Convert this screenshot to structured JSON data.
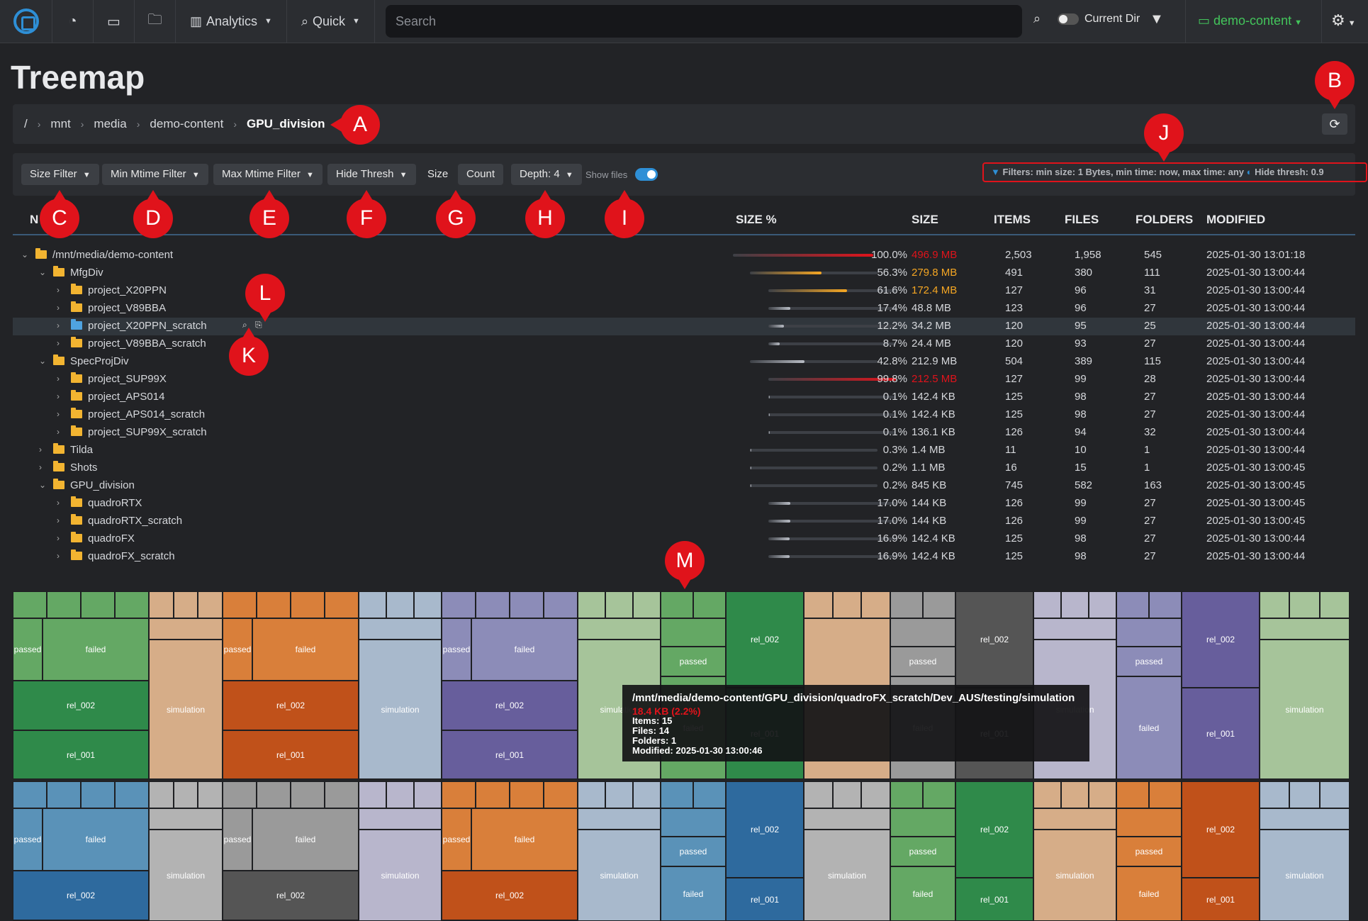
{
  "nav": {
    "analytics_label": "Analytics",
    "quick_label": "Quick",
    "search_placeholder": "Search",
    "current_dir_label": "Current Dir",
    "index_label": "demo-content"
  },
  "page": {
    "title": "Treemap"
  },
  "breadcrumb": [
    "/",
    "mnt",
    "media",
    "demo-content",
    "GPU_division"
  ],
  "controls": {
    "size_filter": "Size Filter",
    "min_mtime_filter": "Min Mtime Filter",
    "max_mtime_filter": "Max Mtime Filter",
    "hide_thresh": "Hide Thresh",
    "size": "Size",
    "count": "Count",
    "depth": "Depth: 4",
    "show_files": "Show files",
    "filter_summary": "Filters: min size: 1 Bytes, min time: now, max time: any",
    "hide_thresh_summary": "Hide thresh: 0.9"
  },
  "table": {
    "headers": {
      "name": "N",
      "size_pct": "SIZE %",
      "size": "SIZE",
      "items": "ITEMS",
      "files": "FILES",
      "folders": "FOLDERS",
      "modified": "MODIFIED"
    },
    "rows": [
      {
        "indent": 0,
        "expanded": true,
        "name": "/mnt/media/demo-content",
        "pct": "100.0%",
        "pct_value": 100.0,
        "size": "496.9 MB",
        "size_color": "#e0131b",
        "items": "2,503",
        "files": "1,958",
        "folders": "545",
        "modified": "2025-01-30 13:01:18"
      },
      {
        "indent": 1,
        "expanded": true,
        "name": "MfgDiv",
        "pct": "56.3%",
        "pct_value": 56.3,
        "size": "279.8 MB",
        "size_color": "#f5a623",
        "items": "491",
        "files": "380",
        "folders": "111",
        "modified": "2025-01-30 13:00:44"
      },
      {
        "indent": 2,
        "expanded": false,
        "name": "project_X20PPN",
        "pct": "61.6%",
        "pct_value": 61.6,
        "size": "172.4 MB",
        "size_color": "#f5a623",
        "items": "127",
        "files": "96",
        "folders": "31",
        "modified": "2025-01-30 13:00:44"
      },
      {
        "indent": 2,
        "expanded": false,
        "name": "project_V89BBA",
        "pct": "17.4%",
        "pct_value": 17.4,
        "size": "48.8 MB",
        "size_color": "",
        "items": "123",
        "files": "96",
        "folders": "27",
        "modified": "2025-01-30 13:00:44"
      },
      {
        "indent": 2,
        "expanded": false,
        "name": "project_X20PPN_scratch",
        "pct": "12.2%",
        "pct_value": 12.2,
        "size": "34.2 MB",
        "size_color": "",
        "items": "120",
        "files": "95",
        "folders": "25",
        "modified": "2025-01-30 13:00:44",
        "highlight": true
      },
      {
        "indent": 2,
        "expanded": false,
        "name": "project_V89BBA_scratch",
        "pct": "8.7%",
        "pct_value": 8.7,
        "size": "24.4 MB",
        "size_color": "",
        "items": "120",
        "files": "93",
        "folders": "27",
        "modified": "2025-01-30 13:00:44"
      },
      {
        "indent": 1,
        "expanded": true,
        "name": "SpecProjDiv",
        "pct": "42.8%",
        "pct_value": 42.8,
        "size": "212.9 MB",
        "size_color": "",
        "items": "504",
        "files": "389",
        "folders": "115",
        "modified": "2025-01-30 13:00:44"
      },
      {
        "indent": 2,
        "expanded": false,
        "name": "project_SUP99X",
        "pct": "99.8%",
        "pct_value": 99.8,
        "size": "212.5 MB",
        "size_color": "#e0131b",
        "items": "127",
        "files": "99",
        "folders": "28",
        "modified": "2025-01-30 13:00:44"
      },
      {
        "indent": 2,
        "expanded": false,
        "name": "project_APS014",
        "pct": "0.1%",
        "pct_value": 0.1,
        "size": "142.4 KB",
        "size_color": "",
        "items": "125",
        "files": "98",
        "folders": "27",
        "modified": "2025-01-30 13:00:44"
      },
      {
        "indent": 2,
        "expanded": false,
        "name": "project_APS014_scratch",
        "pct": "0.1%",
        "pct_value": 0.1,
        "size": "142.4 KB",
        "size_color": "",
        "items": "125",
        "files": "98",
        "folders": "27",
        "modified": "2025-01-30 13:00:44"
      },
      {
        "indent": 2,
        "expanded": false,
        "name": "project_SUP99X_scratch",
        "pct": "0.1%",
        "pct_value": 0.1,
        "size": "136.1 KB",
        "size_color": "",
        "items": "126",
        "files": "94",
        "folders": "32",
        "modified": "2025-01-30 13:00:44"
      },
      {
        "indent": 1,
        "expanded": false,
        "name": "Tilda",
        "pct": "0.3%",
        "pct_value": 0.3,
        "size": "1.4 MB",
        "size_color": "",
        "items": "11",
        "files": "10",
        "folders": "1",
        "modified": "2025-01-30 13:00:44"
      },
      {
        "indent": 1,
        "expanded": false,
        "name": "Shots",
        "pct": "0.2%",
        "pct_value": 0.2,
        "size": "1.1 MB",
        "size_color": "",
        "items": "16",
        "files": "15",
        "folders": "1",
        "modified": "2025-01-30 13:00:45"
      },
      {
        "indent": 1,
        "expanded": true,
        "name": "GPU_division",
        "pct": "0.2%",
        "pct_value": 0.2,
        "size": "845 KB",
        "size_color": "",
        "items": "745",
        "files": "582",
        "folders": "163",
        "modified": "2025-01-30 13:00:45"
      },
      {
        "indent": 2,
        "expanded": false,
        "name": "quadroRTX",
        "pct": "17.0%",
        "pct_value": 17.0,
        "size": "144 KB",
        "size_color": "",
        "items": "126",
        "files": "99",
        "folders": "27",
        "modified": "2025-01-30 13:00:45"
      },
      {
        "indent": 2,
        "expanded": false,
        "name": "quadroRTX_scratch",
        "pct": "17.0%",
        "pct_value": 17.0,
        "size": "144 KB",
        "size_color": "",
        "items": "126",
        "files": "99",
        "folders": "27",
        "modified": "2025-01-30 13:00:45"
      },
      {
        "indent": 2,
        "expanded": false,
        "name": "quadroFX",
        "pct": "16.9%",
        "pct_value": 16.9,
        "size": "142.4 KB",
        "size_color": "",
        "items": "125",
        "files": "98",
        "folders": "27",
        "modified": "2025-01-30 13:00:44"
      },
      {
        "indent": 2,
        "expanded": false,
        "name": "quadroFX_scratch",
        "pct": "16.9%",
        "pct_value": 16.9,
        "size": "142.4 KB",
        "size_color": "",
        "items": "125",
        "files": "98",
        "folders": "27",
        "modified": "2025-01-30 13:00:44"
      }
    ]
  },
  "treemap": {
    "labels": {
      "passed": "passed",
      "failed": "failed",
      "rel_002": "rel_002",
      "rel_001": "rel_001",
      "simulation": "simulation"
    },
    "colors": {
      "green": "#64a864",
      "dkgreen": "#2f8a4a",
      "tan": "#d6ad88",
      "orange": "#d97f3a",
      "dkorange": "#c0511a",
      "ltblue": "#a8b9cc",
      "purple": "#8c8cb8",
      "dkpurple": "#675e9c",
      "sage": "#a6c49a",
      "gray": "#9a9a9a",
      "dkgray": "#555555",
      "lavender": "#b8b6cc",
      "blue": "#5a92b8",
      "dkblue": "#2e6a9e",
      "ltgray": "#b3b3b3"
    }
  },
  "tooltip": {
    "path": "/mnt/media/demo-content/GPU_division/quadroFX_scratch/Dev_AUS/testing/simulation",
    "size": "18.4 KB (2.2%)",
    "items": "Items: 15",
    "files": "Files: 14",
    "folders": "Folders: 1",
    "modified": "Modified: 2025-01-30 13:00:46"
  },
  "callouts": [
    "A",
    "B",
    "C",
    "D",
    "E",
    "F",
    "G",
    "H",
    "I",
    "J",
    "K",
    "L",
    "M"
  ]
}
